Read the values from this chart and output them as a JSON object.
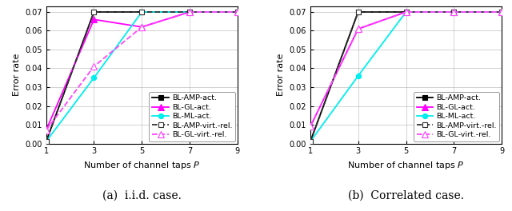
{
  "x": [
    1,
    3,
    5,
    7,
    9
  ],
  "subplot_a": {
    "BL-AMP-act": [
      0.001,
      0.07,
      0.07,
      0.07,
      0.07
    ],
    "BL-GL-act": [
      0.007,
      0.066,
      0.062,
      0.07,
      0.07
    ],
    "BL-ML-act": [
      0.001,
      0.035,
      0.07,
      0.07,
      0.07
    ],
    "BL-AMP-virt-rel": [
      0.001,
      0.07,
      0.07,
      0.07,
      0.07
    ],
    "BL-GL-virt-rel": [
      0.007,
      0.041,
      0.062,
      0.07,
      0.07
    ]
  },
  "subplot_b": {
    "BL-AMP-act": [
      0.001,
      0.07,
      0.07,
      0.07,
      0.07
    ],
    "BL-GL-act": [
      0.009,
      0.061,
      0.07,
      0.07,
      0.07
    ],
    "BL-ML-act": [
      0.001,
      0.036,
      0.07,
      0.07,
      0.07
    ],
    "BL-AMP-virt-rel": [
      0.001,
      0.07,
      0.07,
      0.07,
      0.07
    ],
    "BL-GL-virt-rel": [
      0.009,
      0.061,
      0.07,
      0.07,
      0.07
    ]
  },
  "xlabel": "Number of channel taps $P$",
  "ylabel": "Error rate",
  "ylim": [
    0,
    0.073
  ],
  "ylim_display": [
    0,
    0.07
  ],
  "yticks": [
    0,
    0.01,
    0.02,
    0.03,
    0.04,
    0.05,
    0.06,
    0.07
  ],
  "xticks": [
    1,
    3,
    5,
    7,
    9
  ],
  "caption_a": "(a)  i.i.d. case.",
  "caption_b": "(b)  Correlated case.",
  "legend_labels": [
    "BL-AMP-act.",
    "BL-GL-act.",
    "BL-ML-act.",
    "BL-AMP-virt.-rel.",
    "BL-GL-virt.-rel."
  ],
  "keys": [
    "BL-AMP-act",
    "BL-GL-act",
    "BL-ML-act",
    "BL-AMP-virt-rel",
    "BL-GL-virt-rel"
  ],
  "colors": {
    "BL-AMP-act": "#000000",
    "BL-GL-act": "#ff00ff",
    "BL-ML-act": "#00eeee",
    "BL-AMP-virt-rel": "#333333",
    "BL-GL-virt-rel": "#ff44ff"
  },
  "linestyles": {
    "BL-AMP-act": "-",
    "BL-GL-act": "-",
    "BL-ML-act": "-",
    "BL-AMP-virt-rel": "--",
    "BL-GL-virt-rel": "--"
  },
  "markers": {
    "BL-AMP-act": "s",
    "BL-GL-act": "^",
    "BL-ML-act": "o",
    "BL-AMP-virt-rel": "s",
    "BL-GL-virt-rel": "^"
  },
  "markerfacecolors": {
    "BL-AMP-act": "#000000",
    "BL-GL-act": "#ff00ff",
    "BL-ML-act": "#00eeee",
    "BL-AMP-virt-rel": "white",
    "BL-GL-virt-rel": "white"
  },
  "markeredgecolors": {
    "BL-AMP-act": "#000000",
    "BL-GL-act": "#ff00ff",
    "BL-ML-act": "#00eeee",
    "BL-AMP-virt-rel": "#333333",
    "BL-GL-virt-rel": "#ff44ff"
  },
  "markersizes": {
    "BL-AMP-act": 4.5,
    "BL-GL-act": 5.5,
    "BL-ML-act": 4.5,
    "BL-AMP-virt-rel": 4.5,
    "BL-GL-virt-rel": 5.5
  },
  "linewidths": {
    "BL-AMP-act": 1.3,
    "BL-GL-act": 1.3,
    "BL-ML-act": 1.3,
    "BL-AMP-virt-rel": 1.3,
    "BL-GL-virt-rel": 1.3
  },
  "caption_fontsize": 10,
  "tick_fontsize": 7,
  "label_fontsize": 8,
  "legend_fontsize": 6.8,
  "figsize": [
    6.4,
    2.64
  ],
  "dpi": 100
}
